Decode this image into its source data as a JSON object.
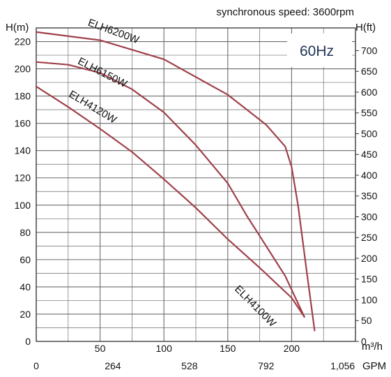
{
  "chart_data": {
    "type": "line",
    "title": "synchronous speed: 3600rpm",
    "annotation": "60Hz",
    "ylabel_left": "H(m)",
    "ylabel_right": "H(ft)",
    "xlabel_flow": "m³/h",
    "xlabel_gpm": "GPM",
    "x_flow_ticks": [
      "50",
      "100",
      "150",
      "200"
    ],
    "x_flow_values": [
      50,
      100,
      150,
      200
    ],
    "x_gpm_ticks": [
      "0",
      "264",
      "528",
      "792",
      "1,056"
    ],
    "x_gpm_values": [
      0,
      60,
      120,
      180,
      240
    ],
    "y_left_ticks": [
      "0",
      "20",
      "40",
      "60",
      "80",
      "100",
      "120",
      "140",
      "160",
      "180",
      "200",
      "220"
    ],
    "y_left_values": [
      0,
      20,
      40,
      60,
      80,
      100,
      120,
      140,
      160,
      180,
      200,
      220
    ],
    "y_right_ticks": [
      "0",
      "50",
      "100",
      "150",
      "200",
      "250",
      "300",
      "350",
      "400",
      "450",
      "500",
      "550",
      "600",
      "650",
      "700"
    ],
    "y_right_values": [
      0,
      50,
      100,
      150,
      200,
      250,
      300,
      350,
      400,
      450,
      500,
      550,
      600,
      650,
      700
    ],
    "xlim": [
      0,
      250
    ],
    "ylim": [
      0,
      230
    ],
    "grid": true,
    "series": [
      {
        "name": "ELH6200W",
        "x": [
          0,
          50,
          100,
          150,
          180,
          195,
          200,
          205,
          212,
          218
        ],
        "y": [
          227,
          221,
          207,
          181,
          159,
          143,
          128,
          100,
          50,
          8
        ]
      },
      {
        "name": "ELH6150W",
        "x": [
          0,
          25,
          50,
          75,
          100,
          125,
          150,
          165,
          180,
          195,
          210
        ],
        "y": [
          205,
          203,
          197,
          185,
          168,
          144,
          116,
          92,
          70,
          48,
          18
        ]
      },
      {
        "name": "ELH4120W",
        "x": [
          0,
          25,
          50,
          75,
          100,
          125,
          150,
          175,
          200,
          210
        ],
        "y": [
          187,
          172,
          156,
          139,
          119,
          98,
          75,
          54,
          32,
          18
        ]
      },
      {
        "name": "ELH4100W",
        "x": [],
        "y": []
      }
    ],
    "colors": {
      "curve": "#a0404a",
      "grid": "#6b6b6b"
    }
  }
}
